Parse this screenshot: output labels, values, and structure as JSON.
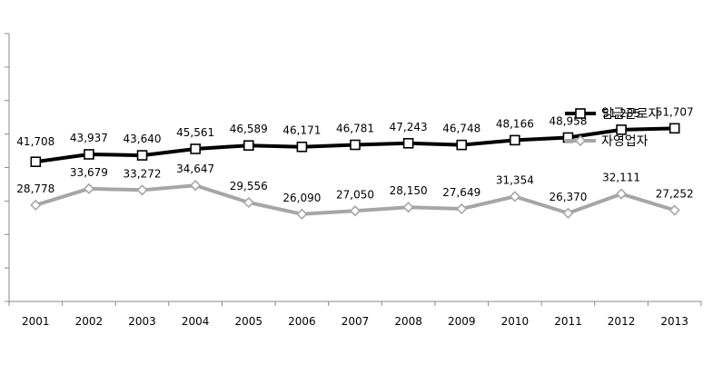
{
  "chart_data": {
    "type": "line",
    "title": "",
    "xlabel": "",
    "ylabel": "",
    "categories": [
      "2001",
      "2002",
      "2003",
      "2004",
      "2005",
      "2006",
      "2007",
      "2008",
      "2009",
      "2010",
      "2011",
      "2012",
      "2013"
    ],
    "ylim": [
      0,
      80000
    ],
    "y_tick_step": 10000,
    "y_tick_labels_shown": false,
    "grid": false,
    "legend_position": "right",
    "series": [
      {
        "name": "임금근로자",
        "color": "#000000",
        "marker": "square",
        "values": [
          41708,
          43937,
          43640,
          45561,
          46589,
          46171,
          46781,
          47243,
          46748,
          48166,
          48958,
          51285,
          51707
        ],
        "labels": [
          "41,708",
          "43,937",
          "43,640",
          "45,561",
          "46,589",
          "46,171",
          "46,781",
          "47,243",
          "46,748",
          "48,166",
          "48,958",
          "51,285",
          "51,707"
        ]
      },
      {
        "name": "자영업자",
        "color": "#a6a6a6",
        "marker": "diamond",
        "values": [
          28778,
          33679,
          33272,
          34647,
          29556,
          26090,
          27050,
          28150,
          27649,
          31354,
          26370,
          32111,
          27252
        ],
        "labels": [
          "28,778",
          "33,679",
          "33,272",
          "34,647",
          "29,556",
          "26,090",
          "27,050",
          "28,150",
          "27,649",
          "31,354",
          "26,370",
          "32,111",
          "27,252"
        ]
      }
    ]
  }
}
